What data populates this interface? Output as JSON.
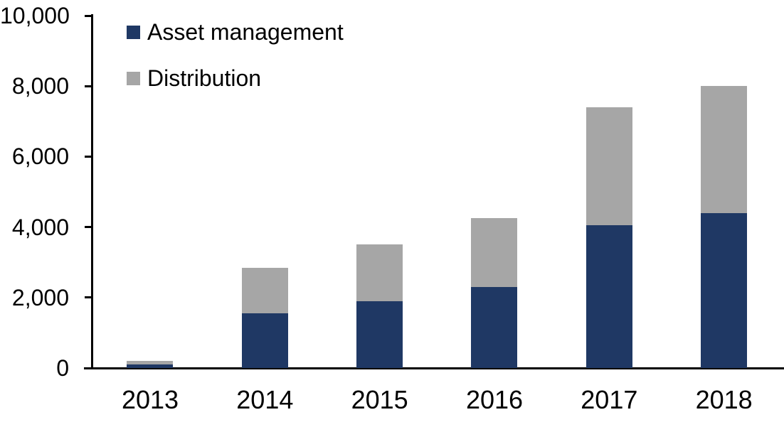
{
  "chart_data": {
    "type": "bar",
    "stacked": true,
    "title": "",
    "xlabel": "",
    "ylabel": "",
    "categories": [
      "2013",
      "2014",
      "2015",
      "2016",
      "2017",
      "2018"
    ],
    "series": [
      {
        "name": "Asset management",
        "color": "#1F3864",
        "values": [
          100,
          1550,
          1900,
          2300,
          4050,
          4400
        ]
      },
      {
        "name": "Distribution",
        "color": "#A6A6A6",
        "values": [
          100,
          1300,
          1600,
          1950,
          3350,
          3600
        ]
      }
    ],
    "ylim": [
      0,
      10000
    ],
    "ytick_interval": 2000,
    "ytick_labels": [
      "0",
      "2,000",
      "4,000",
      "6,000",
      "8,000",
      "10,000"
    ],
    "grid": false,
    "legend_position": "top-left"
  },
  "colors": {
    "background": "#FFFFFF",
    "axis": "#000000",
    "text": "#000000"
  }
}
